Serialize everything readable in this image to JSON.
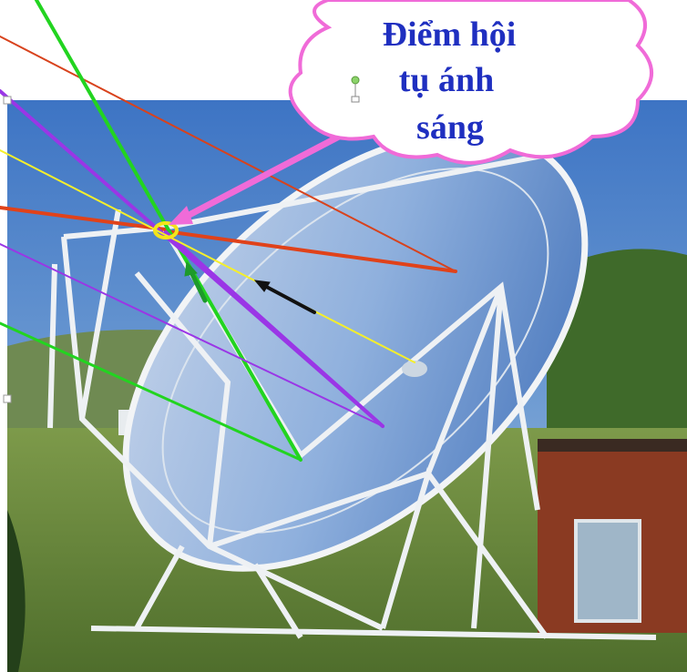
{
  "callout": {
    "lines": [
      "Điểm hội",
      "tụ ánh",
      "sáng"
    ]
  }
}
